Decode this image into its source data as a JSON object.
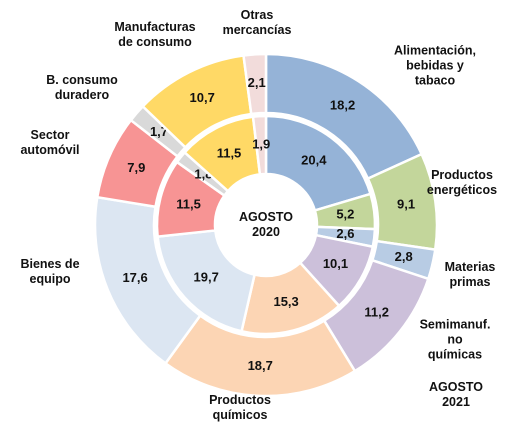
{
  "chart_data": {
    "type": "donut",
    "categories": [
      "Alimentación,\nbebidas y tabaco",
      "Productos\nenergéticos",
      "Materias\nprimas",
      "Semimanuf.\nno químicas",
      "Productos\nquímicos",
      "Bienes de\nequipo",
      "Sector\nautomóvil",
      "B. consumo\nduradero",
      "Manufacturas\nde consumo",
      "Otras\nmercancías"
    ],
    "colors": [
      "#95b3d7",
      "#c3d69b",
      "#b8cce4",
      "#ccc0da",
      "#fcd5b4",
      "#dce6f2",
      "#f79494",
      "#d9d9d9",
      "#ffd966",
      "#f2dcdb"
    ],
    "series": [
      {
        "name": "AGOSTO\n2020",
        "values": [
          20.4,
          5.2,
          2.6,
          10.1,
          15.3,
          19.7,
          11.5,
          1.8,
          11.5,
          1.9
        ],
        "value_labels": [
          "20,4",
          "5,2",
          "2,6",
          "10,1",
          "15,3",
          "19,7",
          "11,5",
          "1,8",
          "11,5",
          "1,9"
        ]
      },
      {
        "name": "AGOSTO\n2021",
        "values": [
          18.2,
          9.1,
          2.8,
          11.2,
          18.7,
          17.6,
          7.9,
          1.7,
          10.7,
          2.1
        ],
        "value_labels": [
          "18,2",
          "9,1",
          "2,8",
          "11,2",
          "18,7",
          "17,6",
          "7,9",
          "1,7",
          "10,7",
          "2,1"
        ]
      }
    ]
  }
}
